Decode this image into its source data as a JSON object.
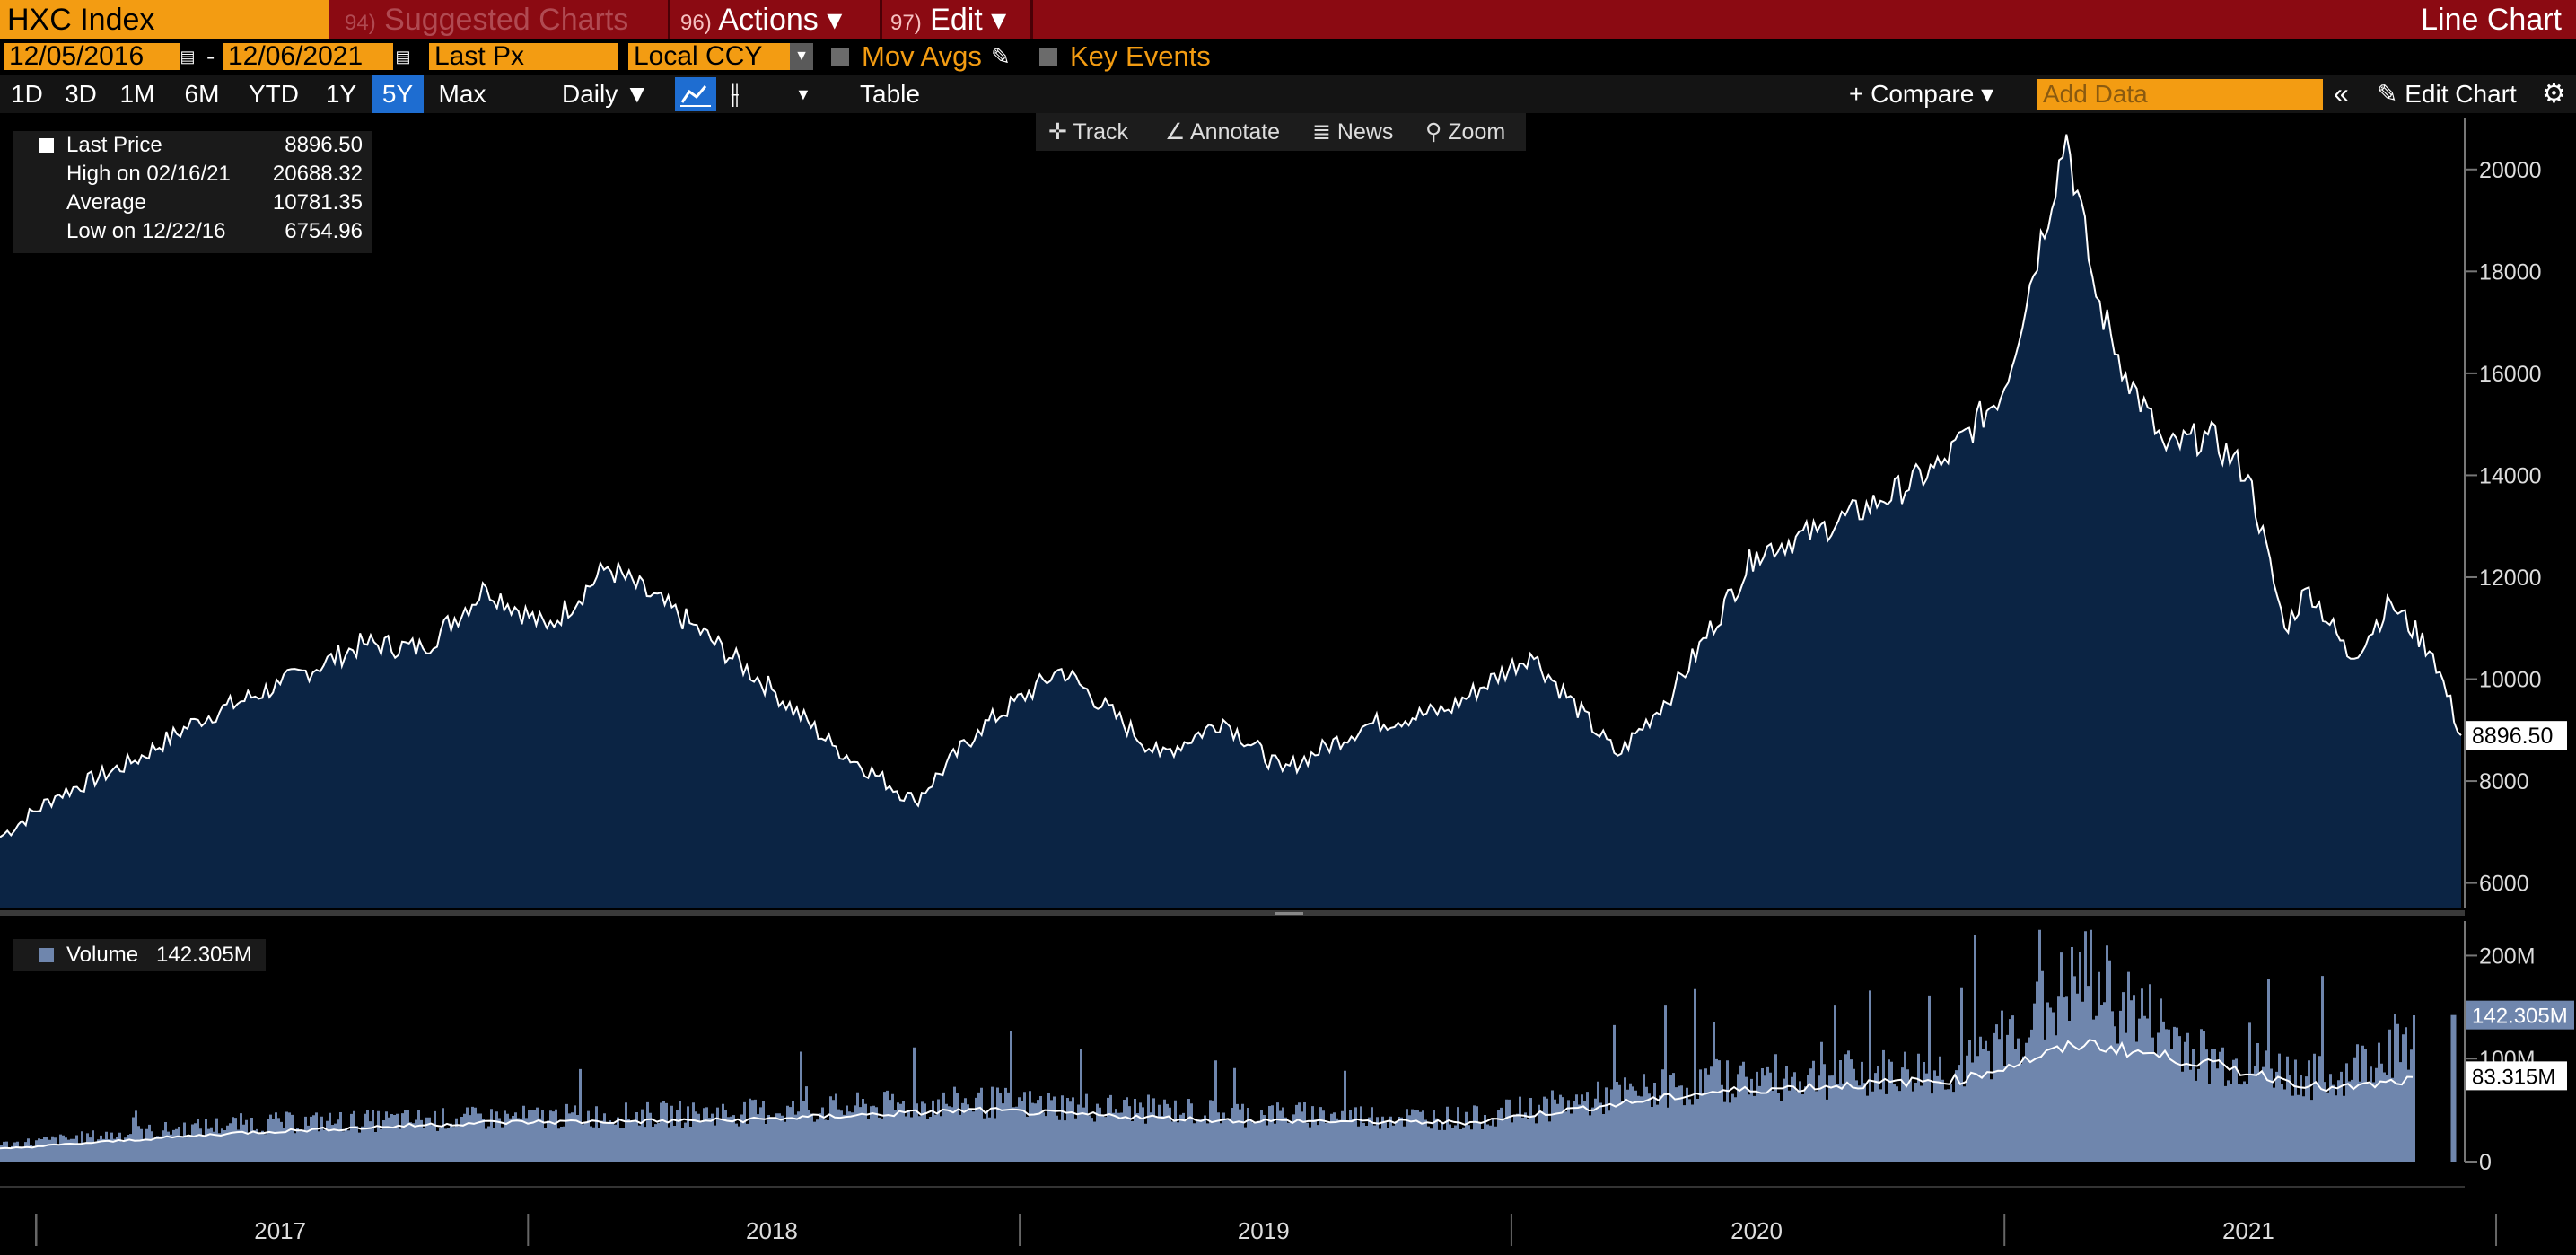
{
  "header": {
    "ticker": "HXC Index",
    "suggested": {
      "num": "94)",
      "label": "Suggested Charts"
    },
    "actions": {
      "num": "96)",
      "label": "Actions ▾"
    },
    "edit": {
      "num": "97)",
      "label": "Edit ▾"
    },
    "chart_type": "Line Chart"
  },
  "toolbar": {
    "start_date": "12/05/2016",
    "dash": "-",
    "end_date": "12/06/2021",
    "field": "Last Px",
    "currency": "Local CCY",
    "mov_avgs": "Mov Avgs",
    "key_events": "Key Events"
  },
  "ranges": [
    "1D",
    "3D",
    "1M",
    "6M",
    "YTD",
    "1Y",
    "5Y",
    "Max"
  ],
  "active_range": "5Y",
  "periodicity": "Daily ▼",
  "table_label": "Table",
  "compare_label": "+ Compare ▾",
  "add_data_placeholder": "Add Data",
  "edit_chart_label": "Edit Chart",
  "tools": {
    "track": "Track",
    "annotate": "Annotate",
    "news": "News",
    "zoom": "Zoom"
  },
  "legend": {
    "last_price_label": "Last Price",
    "last_price": "8896.50",
    "high_label": "High on 02/16/21",
    "high": "20688.32",
    "avg_label": "Average",
    "avg": "10781.35",
    "low_label": "Low on 12/22/16",
    "low": "6754.96"
  },
  "volume_legend": {
    "label": "Volume",
    "value": "142.305M"
  },
  "price_axis": [
    "20000",
    "18000",
    "16000",
    "14000",
    "12000",
    "10000",
    "8000",
    "6000"
  ],
  "volume_axis": [
    "200M",
    "100M",
    "0"
  ],
  "last_price_tag": "8896.50",
  "volume_tags": [
    "142.305M",
    "83.315M"
  ],
  "x_axis_years": [
    "2017",
    "2018",
    "2019",
    "2020",
    "2021"
  ],
  "colors": {
    "accent": "#f39c12",
    "header": "#8b0a12",
    "area": "#0b2444",
    "volume": "#6f86ad",
    "active": "#1e6dd1"
  },
  "chart_data": [
    {
      "type": "area",
      "title": "HXC Index",
      "series": [
        {
          "name": "Last Price",
          "x": [
            "2016-12-05",
            "2017-01-15",
            "2017-03-15",
            "2017-05-01",
            "2017-07-01",
            "2017-09-01",
            "2017-10-15",
            "2017-12-01",
            "2018-01-15",
            "2018-03-01",
            "2018-05-01",
            "2018-07-01",
            "2018-08-15",
            "2018-10-15",
            "2018-12-01",
            "2019-02-01",
            "2019-04-15",
            "2019-06-01",
            "2019-07-15",
            "2019-09-15",
            "2019-11-15",
            "2020-01-15",
            "2020-03-20",
            "2020-05-01",
            "2020-07-01",
            "2020-08-15",
            "2020-10-01",
            "2020-11-15",
            "2021-01-01",
            "2021-02-16",
            "2021-03-10",
            "2021-04-01",
            "2021-05-01",
            "2021-06-01",
            "2021-07-01",
            "2021-07-28",
            "2021-08-15",
            "2021-09-15",
            "2021-10-15",
            "2021-11-15",
            "2021-12-06"
          ],
          "y": [
            6900,
            7700,
            8400,
            9200,
            9900,
            10700,
            10600,
            11800,
            11000,
            12200,
            11100,
            9800,
            8700,
            7600,
            9000,
            10200,
            8500,
            9200,
            8200,
            9100,
            9400,
            10500,
            8500,
            9800,
            12500,
            12900,
            13500,
            14200,
            15700,
            20688,
            17500,
            16000,
            14500,
            14800,
            14000,
            11000,
            11800,
            10400,
            11500,
            10500,
            8896.5
          ]
        }
      ],
      "ylim": [
        5500,
        21000
      ],
      "y_ticks": [
        6000,
        8000,
        10000,
        12000,
        14000,
        16000,
        18000,
        20000
      ],
      "x_ticks": [
        "2017",
        "2018",
        "2019",
        "2020",
        "2021"
      ]
    },
    {
      "type": "bar",
      "title": "Volume",
      "series": [
        {
          "name": "Volume",
          "x": [
            "2016-12",
            "2017-06",
            "2017-12",
            "2018-06",
            "2018-12",
            "2019-06",
            "2019-12",
            "2020-06",
            "2020-12",
            "2021-03",
            "2021-06",
            "2021-09",
            "2021-12"
          ],
          "y": [
            15000000,
            35000000,
            40000000,
            45000000,
            55000000,
            45000000,
            40000000,
            75000000,
            85000000,
            170000000,
            95000000,
            75000000,
            142305000
          ]
        },
        {
          "name": "Volume moving average",
          "x": [
            "2016-12",
            "2017-06",
            "2017-12",
            "2018-06",
            "2018-12",
            "2019-06",
            "2019-12",
            "2020-06",
            "2020-12",
            "2021-03",
            "2021-06",
            "2021-09",
            "2021-12"
          ],
          "y": [
            12000000,
            28000000,
            38000000,
            40000000,
            50000000,
            40000000,
            38000000,
            68000000,
            80000000,
            115000000,
            95000000,
            70000000,
            83315000
          ]
        }
      ],
      "ylim": [
        0,
        230000000
      ],
      "y_ticks": [
        "0",
        "100M",
        "200M"
      ]
    }
  ]
}
